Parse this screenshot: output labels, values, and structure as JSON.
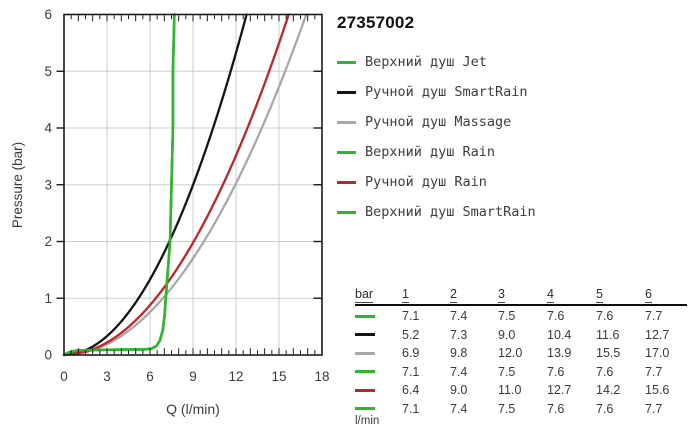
{
  "title": "27357002",
  "colors": {
    "green": "#2db72d",
    "black": "#141414",
    "gray": "#a8a8a8",
    "red": "#c42323",
    "grid": "#cdcdcd",
    "axis": "#1a1a1a",
    "tick_text": "#3a3a3a",
    "legend_text": "#3d3d3d"
  },
  "chart_data": {
    "type": "line",
    "title": "27357002",
    "xlabel": "Q (l/min)",
    "ylabel": "Pressure (bar)",
    "xlim": [
      0,
      18
    ],
    "ylim": [
      0,
      6
    ],
    "x_ticks": [
      0,
      3,
      6,
      9,
      12,
      15,
      18
    ],
    "y_ticks": [
      0,
      1,
      2,
      3,
      4,
      5,
      6
    ],
    "minor_tick_step_x": 0.5,
    "grid": true,
    "legend_position": "right",
    "pressures_bar": [
      1,
      2,
      3,
      4,
      5,
      6
    ],
    "green_preamble": [
      [
        0,
        0
      ],
      [
        0.35,
        0.05
      ],
      [
        0.9,
        0.08
      ],
      [
        2.5,
        0.09
      ],
      [
        5.6,
        0.1
      ],
      [
        6.1,
        0.11
      ],
      [
        6.45,
        0.16
      ],
      [
        6.7,
        0.26
      ],
      [
        6.9,
        0.45
      ],
      [
        7.02,
        0.7
      ]
    ],
    "series": [
      {
        "name": "Верхний душ Jet",
        "color": "#2db72d",
        "curve": "throttle",
        "flow_l_min": [
          7.1,
          7.4,
          7.5,
          7.6,
          7.6,
          7.7
        ]
      },
      {
        "name": "Ручной душ SmartRain",
        "color": "#141414",
        "curve": "sqrt",
        "flow_l_min": [
          5.2,
          7.3,
          9.0,
          10.4,
          11.6,
          12.7
        ]
      },
      {
        "name": "Ручной душ Massage",
        "color": "#a8a8a8",
        "curve": "sqrt",
        "flow_l_min": [
          6.9,
          9.8,
          12.0,
          13.9,
          15.5,
          17.0
        ]
      },
      {
        "name": "Верхний душ Rain",
        "color": "#2db72d",
        "curve": "throttle",
        "flow_l_min": [
          7.1,
          7.4,
          7.5,
          7.6,
          7.6,
          7.7
        ]
      },
      {
        "name": "Ручной душ Rain",
        "color": "#c42323",
        "curve": "sqrt",
        "flow_l_min": [
          6.4,
          9.0,
          11.0,
          12.7,
          14.2,
          15.6
        ]
      },
      {
        "name": "Верхний душ SmartRain",
        "color": "#2db72d",
        "curve": "throttle",
        "flow_l_min": [
          7.1,
          7.4,
          7.5,
          7.6,
          7.6,
          7.7
        ]
      }
    ]
  },
  "table": {
    "header_label": "bar",
    "header_cols": [
      "1",
      "2",
      "3",
      "4",
      "5",
      "6"
    ],
    "unit_label": "l/min"
  }
}
